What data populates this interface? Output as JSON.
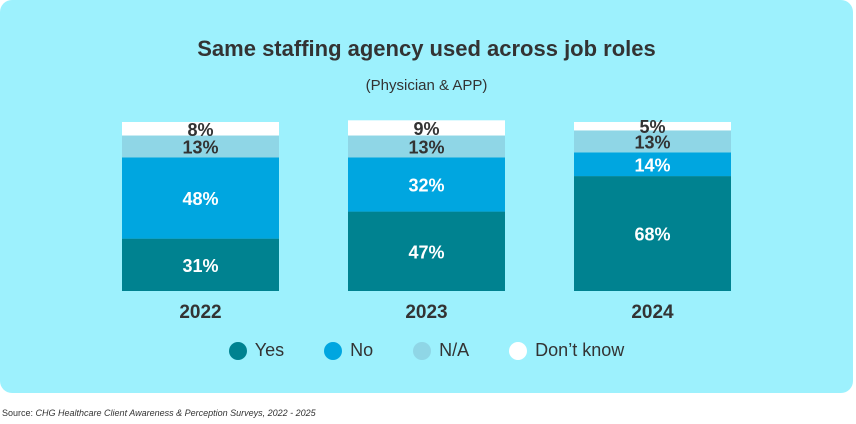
{
  "chart_data": {
    "type": "bar",
    "stacked": true,
    "title": "Same staffing agency used across job roles",
    "subtitle": "(Physician & APP)",
    "categories": [
      "2022",
      "2023",
      "2024"
    ],
    "series": [
      {
        "name": "Yes",
        "color": "#008290",
        "label_color": "#ffffff",
        "values": [
          31,
          47,
          68
        ]
      },
      {
        "name": "No",
        "color": "#00a6e0",
        "label_color": "#ffffff",
        "values": [
          48,
          32,
          14
        ]
      },
      {
        "name": "N/A",
        "color": "#8fd6e6",
        "label_color": "#333333",
        "values": [
          13,
          13,
          13
        ]
      },
      {
        "name": "Don’t know",
        "color": "#ffffff",
        "label_color": "#333333",
        "values": [
          8,
          9,
          5
        ]
      }
    ],
    "value_suffix": "%",
    "ylim": [
      0,
      100
    ],
    "grid": false,
    "legend": "bottom"
  },
  "source": {
    "prefix": "Source: ",
    "text": "CHG Healthcare Client Awareness & Perception Surveys, 2022 - 2025"
  },
  "background_color": "#9df1fd"
}
